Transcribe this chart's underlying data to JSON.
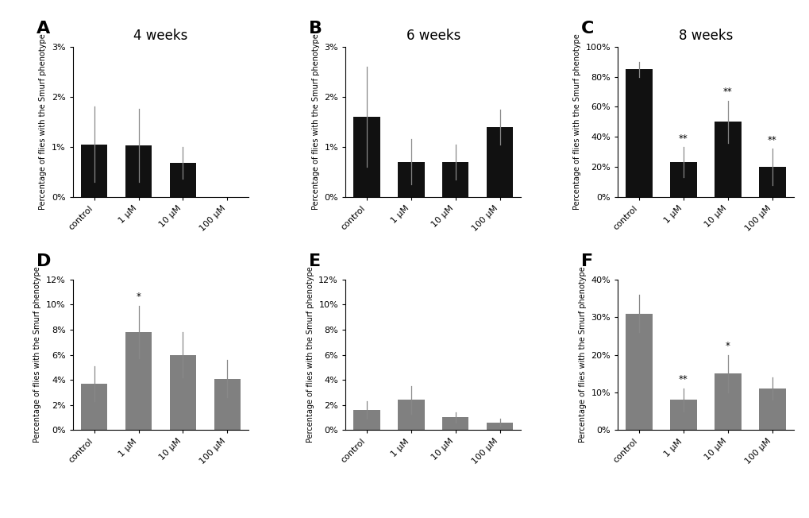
{
  "panels": [
    {
      "label": "A",
      "title": "4 weeks",
      "categories": [
        "control",
        "1 μM",
        "10 μM",
        "100 μM"
      ],
      "values": [
        1.05,
        1.03,
        0.68,
        0.0
      ],
      "errors": [
        0.75,
        0.73,
        0.32,
        0.0
      ],
      "significance": [
        "",
        "",
        "",
        ""
      ],
      "ylim": [
        0,
        3
      ],
      "yticks": [
        0,
        1,
        2,
        3
      ],
      "yticklabels": [
        "0%",
        "1%",
        "2%",
        "3%"
      ],
      "bar_color": "#111111",
      "row": 0,
      "col": 0
    },
    {
      "label": "B",
      "title": "6 weeks",
      "categories": [
        "control",
        "1 μM",
        "10 μM",
        "100 μM"
      ],
      "values": [
        1.6,
        0.7,
        0.7,
        1.4
      ],
      "errors": [
        1.0,
        0.45,
        0.35,
        0.35
      ],
      "significance": [
        "",
        "",
        "",
        ""
      ],
      "ylim": [
        0,
        3
      ],
      "yticks": [
        0,
        1,
        2,
        3
      ],
      "yticklabels": [
        "0%",
        "1%",
        "2%",
        "3%"
      ],
      "bar_color": "#111111",
      "row": 0,
      "col": 1
    },
    {
      "label": "C",
      "title": "8 weeks",
      "categories": [
        "control",
        "1 μM",
        "10 μM",
        "100 μM"
      ],
      "values": [
        85,
        23,
        50,
        20
      ],
      "errors": [
        5,
        10,
        14,
        12
      ],
      "significance": [
        "",
        "**",
        "**",
        "**"
      ],
      "ylim": [
        0,
        100
      ],
      "yticks": [
        0,
        20,
        40,
        60,
        80,
        100
      ],
      "yticklabels": [
        "0%",
        "20%",
        "40%",
        "60%",
        "80%",
        "100%"
      ],
      "bar_color": "#111111",
      "row": 0,
      "col": 2
    },
    {
      "label": "D",
      "title": "",
      "categories": [
        "control",
        "1 μM",
        "10 μM",
        "100 μM"
      ],
      "values": [
        3.7,
        7.8,
        6.0,
        4.1
      ],
      "errors": [
        1.4,
        2.1,
        1.8,
        1.5
      ],
      "significance": [
        "",
        "*",
        "",
        ""
      ],
      "ylim": [
        0,
        12
      ],
      "yticks": [
        0,
        2,
        4,
        6,
        8,
        10,
        12
      ],
      "yticklabels": [
        "0%",
        "2%",
        "4%",
        "6%",
        "8%",
        "10%",
        "12%"
      ],
      "bar_color": "#808080",
      "row": 1,
      "col": 0
    },
    {
      "label": "E",
      "title": "",
      "categories": [
        "control",
        "1 μM",
        "10 μM",
        "100 μM"
      ],
      "values": [
        1.6,
        2.4,
        1.0,
        0.6
      ],
      "errors": [
        0.7,
        1.1,
        0.4,
        0.3
      ],
      "significance": [
        "",
        "",
        "",
        ""
      ],
      "ylim": [
        0,
        12
      ],
      "yticks": [
        0,
        2,
        4,
        6,
        8,
        10,
        12
      ],
      "yticklabels": [
        "0%",
        "2%",
        "4%",
        "6%",
        "8%",
        "10%",
        "12%"
      ],
      "bar_color": "#808080",
      "row": 1,
      "col": 1
    },
    {
      "label": "F",
      "title": "",
      "categories": [
        "control",
        "1 μM",
        "10 μM",
        "100 μM"
      ],
      "values": [
        31,
        8,
        15,
        11
      ],
      "errors": [
        5,
        3,
        5,
        3
      ],
      "significance": [
        "",
        "**",
        "*",
        ""
      ],
      "ylim": [
        0,
        40
      ],
      "yticks": [
        0,
        10,
        20,
        30,
        40
      ],
      "yticklabels": [
        "0%",
        "10%",
        "20%",
        "30%",
        "40%"
      ],
      "bar_color": "#808080",
      "row": 1,
      "col": 2
    }
  ],
  "ylabel": "Percentage of flies with the Smurf phenotype",
  "background_color": "#ffffff",
  "fig_width": 10.2,
  "fig_height": 6.52
}
